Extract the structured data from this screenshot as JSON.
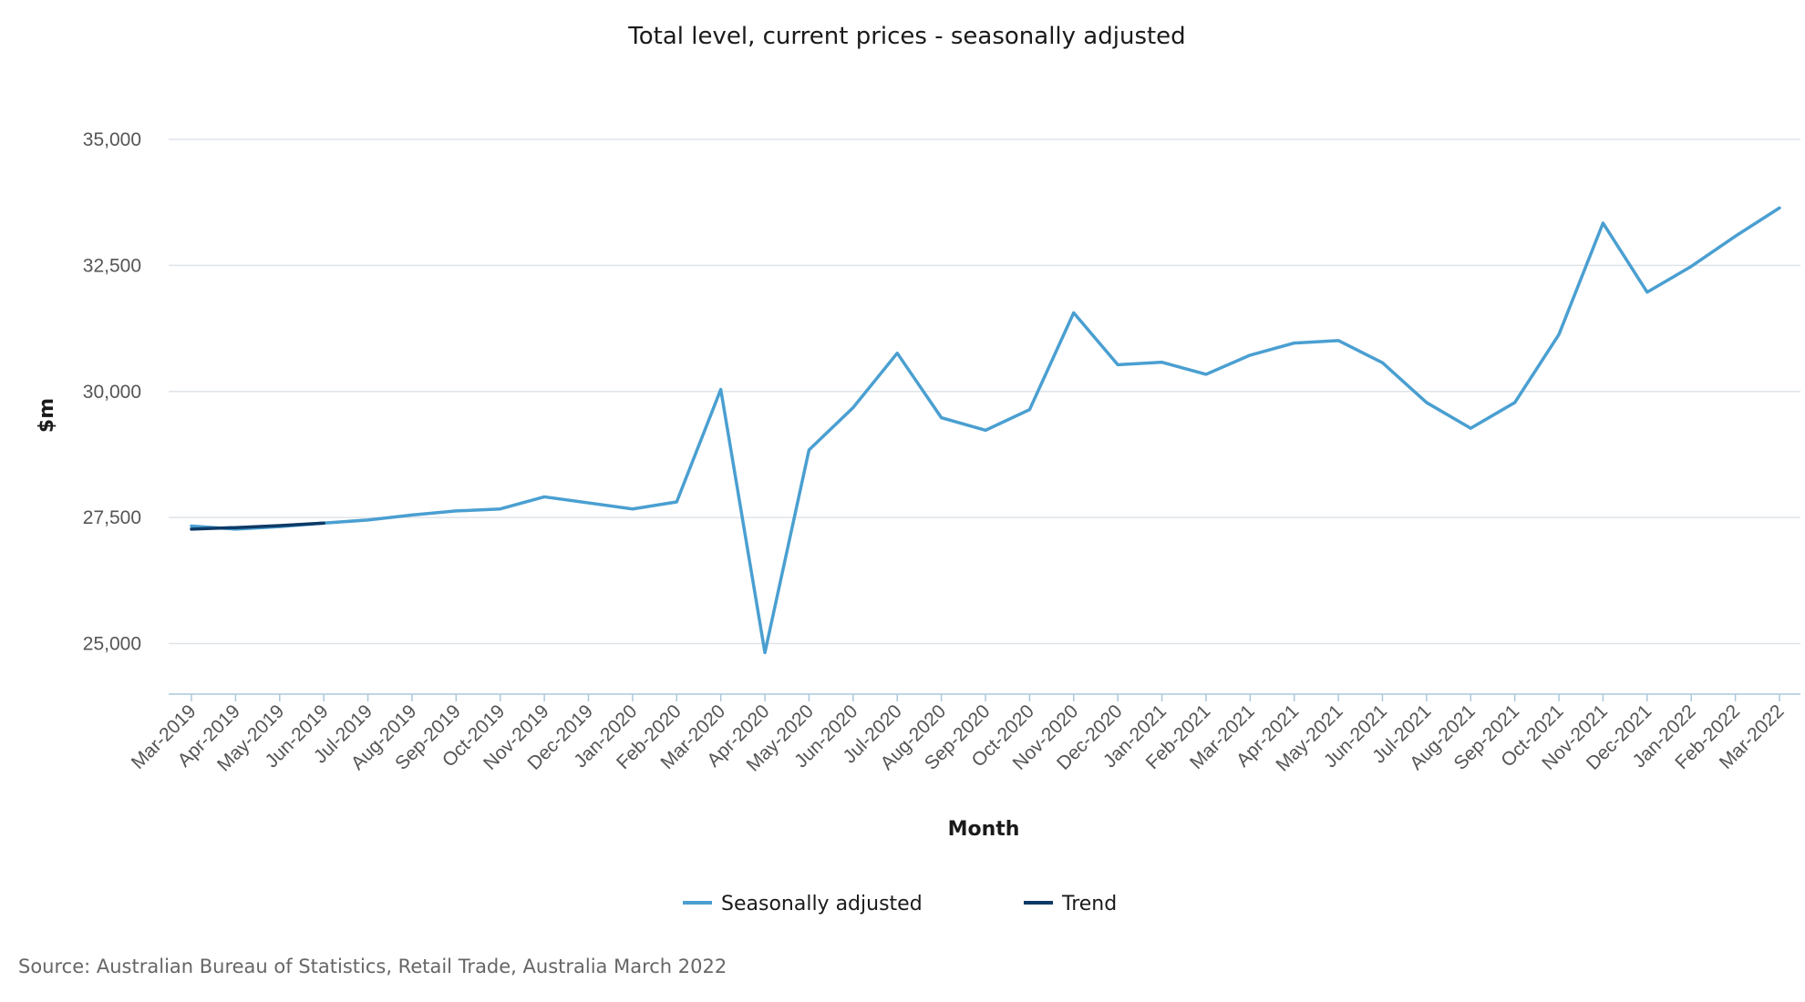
{
  "chart_data": {
    "type": "line",
    "title": "Total level, current prices - seasonally adjusted",
    "xlabel": "Month",
    "ylabel": "$m",
    "ylim": [
      24000,
      35800
    ],
    "yticks": [
      25000,
      27500,
      30000,
      32500,
      35000
    ],
    "ytick_labels": [
      "25,000",
      "27,500",
      "30,000",
      "32,500",
      "35,000"
    ],
    "grid": true,
    "legend_position": "bottom",
    "categories": [
      "Mar-2019",
      "Apr-2019",
      "May-2019",
      "Jun-2019",
      "Jul-2019",
      "Aug-2019",
      "Sep-2019",
      "Oct-2019",
      "Nov-2019",
      "Dec-2019",
      "Jan-2020",
      "Feb-2020",
      "Mar-2020",
      "Apr-2020",
      "May-2020",
      "Jun-2020",
      "Jul-2020",
      "Aug-2020",
      "Sep-2020",
      "Oct-2020",
      "Nov-2020",
      "Dec-2020",
      "Jan-2021",
      "Feb-2021",
      "Mar-2021",
      "Apr-2021",
      "May-2021",
      "Jun-2021",
      "Jul-2021",
      "Aug-2021",
      "Sep-2021",
      "Oct-2021",
      "Nov-2021",
      "Dec-2021",
      "Jan-2022",
      "Feb-2022",
      "Mar-2022"
    ],
    "series": [
      {
        "name": "Seasonally adjusted",
        "color": "#4a9fd1",
        "values": [
          27330,
          27270,
          27320,
          27390,
          27450,
          27550,
          27630,
          27670,
          27910,
          27790,
          27670,
          27810,
          30040,
          24820,
          28840,
          29680,
          30760,
          29480,
          29230,
          29640,
          31560,
          30530,
          30580,
          30340,
          30720,
          30960,
          31010,
          30570,
          29780,
          29270,
          29780,
          31130,
          33340,
          31970,
          32480,
          33080,
          33640
        ]
      },
      {
        "name": "Trend",
        "color": "#0d3a66",
        "values": [
          27270,
          27300,
          27340,
          27390,
          null,
          null,
          null,
          null,
          null,
          null,
          null,
          null,
          null,
          null,
          null,
          null,
          null,
          null,
          null,
          null,
          null,
          null,
          null,
          null,
          null,
          null,
          null,
          null,
          null,
          null,
          null,
          null,
          null,
          null,
          null,
          null,
          null
        ]
      }
    ],
    "source": "Source: Australian Bureau of Statistics, Retail Trade, Australia March 2022"
  }
}
